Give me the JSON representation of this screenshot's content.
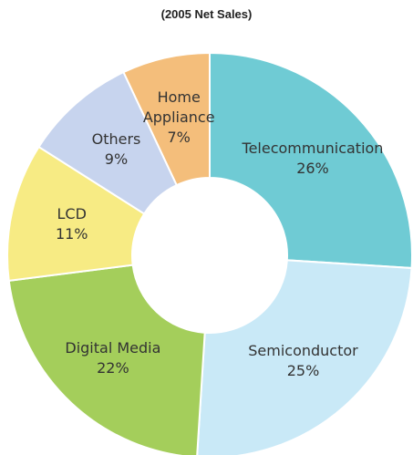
{
  "chart_data": {
    "type": "donut",
    "title": "(2005 Net Sales)",
    "categories": [
      "Telecommunication",
      "Semiconductor",
      "Digital Media",
      "LCD",
      "Others",
      "Home Appliance"
    ],
    "values": [
      26,
      25,
      22,
      11,
      9,
      7
    ],
    "value_labels": [
      "26%",
      "25%",
      "22%",
      "11%",
      "9%",
      "7%"
    ],
    "colors": [
      "#6fcbd4",
      "#c9e9f7",
      "#a4ce5b",
      "#f7eb84",
      "#c7d4ee",
      "#f4be7b"
    ]
  }
}
